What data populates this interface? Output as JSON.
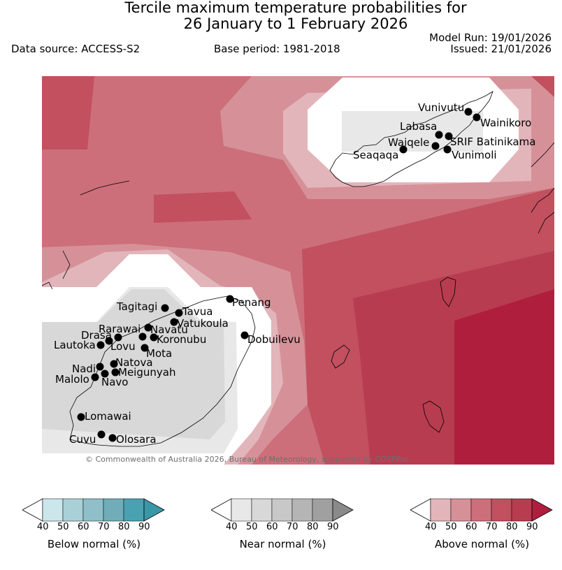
{
  "title_line1": "Tercile maximum temperature probabilities for",
  "title_line2": "26 January to 1 February 2026",
  "data_source": "Data source: ACCESS-S2",
  "base_period": "Base period: 1981-2018",
  "model_run": "Model Run: 19/01/2026",
  "issued": "Issued: 21/01/2026",
  "copyright": "© Commonwealth of Australia 2026, Bureau of Meteorology, supported by COSPPac",
  "stations": [
    {
      "name": "Vunivutu"
    },
    {
      "name": "Wainikoro"
    },
    {
      "name": "Labasa"
    },
    {
      "name": "SRIF Batinikama"
    },
    {
      "name": "Waiqele"
    },
    {
      "name": "Seaqaqa"
    },
    {
      "name": "Vunimoli"
    },
    {
      "name": "Penang"
    },
    {
      "name": "Tagitagi"
    },
    {
      "name": "Tavua"
    },
    {
      "name": "Vatukoula"
    },
    {
      "name": "Rarawai"
    },
    {
      "name": "Navatu"
    },
    {
      "name": "Drasa"
    },
    {
      "name": "Koronubu"
    },
    {
      "name": "Lautoka"
    },
    {
      "name": "Lovu"
    },
    {
      "name": "Dobuilevu"
    },
    {
      "name": "Mota"
    },
    {
      "name": "Natova"
    },
    {
      "name": "Nadi"
    },
    {
      "name": "Meigunyah"
    },
    {
      "name": "Malolo"
    },
    {
      "name": "Navo"
    },
    {
      "name": "Lomawai"
    },
    {
      "name": "Cuvu"
    },
    {
      "name": "Olosara"
    }
  ],
  "legends": [
    {
      "title": "Below normal (%)",
      "ticks": [
        "40",
        "50",
        "60",
        "70",
        "80",
        "90"
      ],
      "colors": [
        "#ffffff",
        "#cbe7ec",
        "#a9d0d6",
        "#8fbfc8",
        "#70adb8",
        "#4aa1b1",
        "#3a97a8"
      ]
    },
    {
      "title": "Near normal (%)",
      "ticks": [
        "40",
        "50",
        "60",
        "70",
        "80",
        "90"
      ],
      "colors": [
        "#ffffff",
        "#e8e8e8",
        "#d8d8d8",
        "#c8c8c8",
        "#b5b5b5",
        "#a0a0a0",
        "#8a8a8a"
      ]
    },
    {
      "title": "Above normal (%)",
      "ticks": [
        "40",
        "50",
        "60",
        "70",
        "80",
        "90"
      ],
      "colors": [
        "#ffffff",
        "#e2b5bb",
        "#d69198",
        "#cc6f7a",
        "#c2505f",
        "#b83c4f",
        "#b01e3e"
      ]
    }
  ]
}
